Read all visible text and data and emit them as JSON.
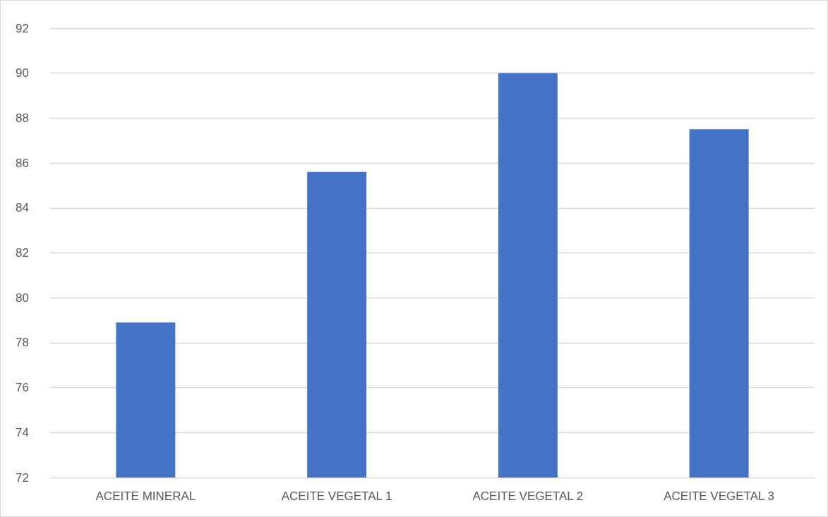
{
  "chart_data": {
    "type": "bar",
    "categories": [
      "ACEITE MINERAL",
      "ACEITE VEGETAL 1",
      "ACEITE VEGETAL 2",
      "ACEITE VEGETAL 3"
    ],
    "values": [
      78.9,
      85.6,
      90.0,
      87.5
    ],
    "color": "#4472c4",
    "ylim": [
      72,
      92
    ],
    "yticks": [
      72,
      74,
      76,
      78,
      80,
      82,
      84,
      86,
      88,
      90,
      92
    ],
    "grid": "y"
  }
}
